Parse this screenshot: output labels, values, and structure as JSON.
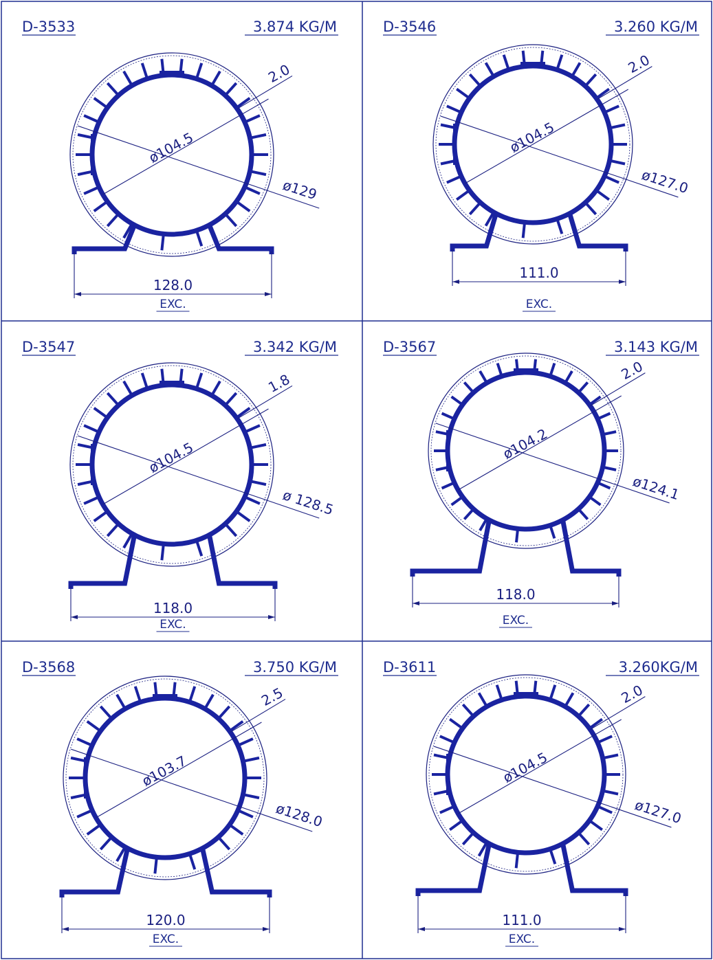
{
  "colors": {
    "line": "#1a1f80",
    "profile": "#1a23a0",
    "border": "#1f2d8f",
    "background": "#ffffff"
  },
  "panels": [
    {
      "code": "D-3533",
      "weight": "3.874 KG/M",
      "inner_dia": "ø104.5",
      "wall": "2.0",
      "outer_dia": "ø129",
      "width": "128.0",
      "finish": "EXC."
    },
    {
      "code": "D-3546",
      "weight": "3.260 KG/M",
      "inner_dia": "ø104.5",
      "wall": "2.0",
      "outer_dia": "ø127.0",
      "width": "111.0",
      "finish": "EXC."
    },
    {
      "code": "D-3547",
      "weight": "3.342 KG/M",
      "inner_dia": "ø104.5",
      "wall": "1.8",
      "outer_dia": "ø 128.5",
      "width": "118.0",
      "finish": "EXC."
    },
    {
      "code": "D-3567",
      "weight": "3.143 KG/M",
      "inner_dia": "ø104.2",
      "wall": "2.0",
      "outer_dia": "ø124.1",
      "width": "118.0",
      "finish": "EXC."
    },
    {
      "code": "D-3568",
      "weight": "3.750 KG/M",
      "inner_dia": "ø103.7",
      "wall": "2.5",
      "outer_dia": "ø128.0",
      "width": "120.0",
      "finish": "EXC."
    },
    {
      "code": "D-3611",
      "weight": "3.260KG/M",
      "inner_dia": "ø104.5",
      "wall": "2.0",
      "outer_dia": "ø127.0",
      "width": "111.0",
      "finish": "EXC."
    }
  ]
}
